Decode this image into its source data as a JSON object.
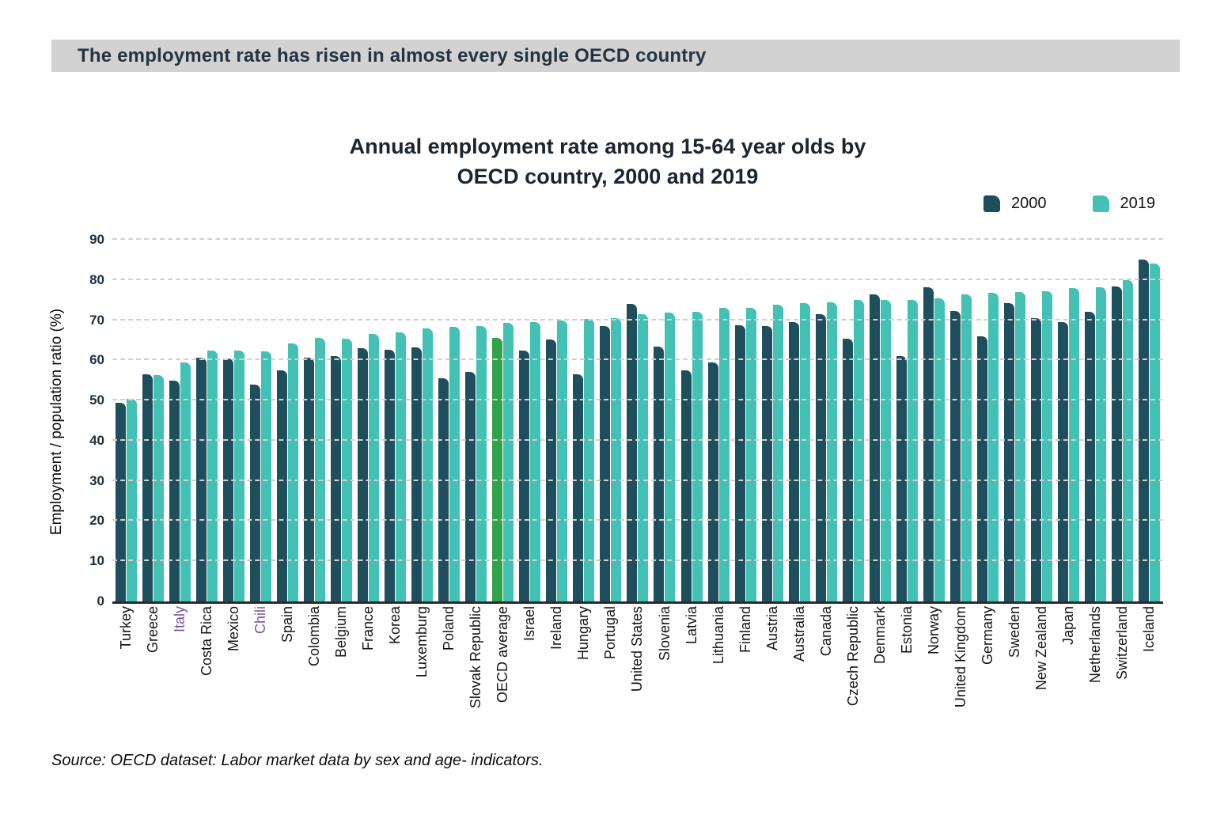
{
  "header": {
    "title": "The employment rate has risen in almost every single OECD country"
  },
  "chart": {
    "title_line1": "Annual employment rate among 15-64 year olds by",
    "title_line2": "OECD country, 2000 and 2019",
    "ylabel": "Employment / population ratio (%)"
  },
  "source": {
    "text": "Source: OECD dataset: Labor market data by sex and age- indicators."
  },
  "colors": {
    "series_2000": "#1f4e5c",
    "series_2019": "#43c1b4",
    "highlight_green": "#31a24c",
    "highlight_label_purple": "#7b4fa6",
    "header_strip": "#d2d2d2"
  },
  "chart_data": {
    "type": "bar",
    "title": "Annual employment rate among 15-64 year olds by OECD country, 2000 and 2019",
    "xlabel": "",
    "ylabel": "Employment / population ratio (%)",
    "ylim": [
      0,
      90
    ],
    "yticks": [
      0,
      10,
      20,
      30,
      40,
      50,
      60,
      70,
      80,
      90
    ],
    "grid": "dashed horizontal gridlines",
    "legend_position": "top-right",
    "categories": [
      "Turkey",
      "Greece",
      "Italy",
      "Costa Rica",
      "Mexico",
      "Chili",
      "Spain",
      "Colombia",
      "Belgium",
      "France",
      "Korea",
      "Luxemburg",
      "Poland",
      "Slovak Republic",
      "OECD average",
      "Israel",
      "Ireland",
      "Hungary",
      "Portugal",
      "United States",
      "Slovenia",
      "Latvia",
      "Lithuania",
      "Finland",
      "Austria",
      "Australia",
      "Canada",
      "Czech Republic",
      "Denmark",
      "Estonia",
      "Norway",
      "United Kingdom",
      "Germany",
      "Sweden",
      "New Zealand",
      "Japan",
      "Netherlands",
      "Switzerland",
      "Iceland"
    ],
    "series": [
      {
        "name": "2000",
        "color": "#1f4e5c",
        "values": [
          49.5,
          56.6,
          55.0,
          60.6,
          60.4,
          54.0,
          57.5,
          60.6,
          61.0,
          63.0,
          62.6,
          63.2,
          55.5,
          57.2,
          65.5,
          62.4,
          65.2,
          56.5,
          68.5,
          74.1,
          63.4,
          57.5,
          59.5,
          68.7,
          68.5,
          69.5,
          71.5,
          65.3,
          76.5,
          61.0,
          78.2,
          72.2,
          66.0,
          74.2,
          70.5,
          69.5,
          72.1,
          78.3,
          85.0
        ]
      },
      {
        "name": "2019",
        "color": "#43c1b4",
        "values": [
          50.5,
          56.4,
          59.5,
          62.5,
          62.4,
          62.2,
          64.2,
          65.5,
          65.4,
          66.5,
          67.0,
          68.0,
          68.4,
          68.5,
          69.3,
          69.5,
          70.0,
          70.3,
          70.5,
          71.4,
          71.9,
          72.1,
          73.0,
          73.0,
          73.9,
          74.2,
          74.4,
          75.0,
          75.0,
          75.1,
          75.4,
          76.4,
          76.9,
          77.0,
          77.2,
          77.9,
          78.1,
          80.0,
          84.0
        ]
      }
    ],
    "highlight_bar": {
      "category": "OECD average",
      "series": "2000",
      "color": "#31a24c"
    },
    "highlight_labels": {
      "categories": [
        "Italy",
        "Chili"
      ],
      "color": "#7b4fa6"
    }
  }
}
